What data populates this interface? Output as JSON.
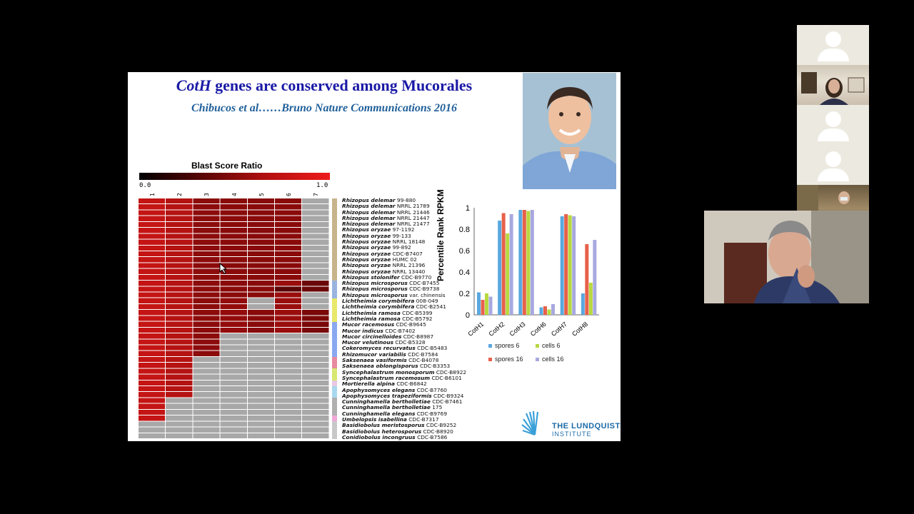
{
  "slide": {
    "title_italic": "CotH",
    "title_rest": " genes are conserved among Mucorales",
    "citation": "Chibucos et al……Bruno Nature Communications 2016"
  },
  "heatmap": {
    "title": "Blast Score Ratio",
    "scale_min": "0.0",
    "scale_max": "1.0",
    "columns": [
      "1",
      "2",
      "3",
      "4",
      "5",
      "6",
      "7"
    ],
    "species": [
      {
        "genus": "Rhizopus delemar",
        "strain": "99-880"
      },
      {
        "genus": "Rhizopus delemar",
        "strain": "NRRL 21789"
      },
      {
        "genus": "Rhizopus delemar",
        "strain": "NRRL 21446"
      },
      {
        "genus": "Rhizopus delemar",
        "strain": "NRRL 21447"
      },
      {
        "genus": "Rhizopus delemar",
        "strain": "NRRL 21477"
      },
      {
        "genus": "Rhizopus oryzae",
        "strain": "97-1192"
      },
      {
        "genus": "Rhizopus oryzae",
        "strain": "99-133"
      },
      {
        "genus": "Rhizopus oryzae",
        "strain": "NRRL 18148"
      },
      {
        "genus": "Rhizopus oryzae",
        "strain": "99-892"
      },
      {
        "genus": "Rhizopus oryzae",
        "strain": "CDC-B7407"
      },
      {
        "genus": "Rhizopus oryzae",
        "strain": "HUMC 02"
      },
      {
        "genus": "Rhizopus oryzae",
        "strain": "NRRL 21396"
      },
      {
        "genus": "Rhizopus oryzae",
        "strain": "NRRL 13440"
      },
      {
        "genus": "Rhizopus stolonifer",
        "strain": "CDC-B9770"
      },
      {
        "genus": "Rhizopus microsporus",
        "strain": "CDC-B7455"
      },
      {
        "genus": "Rhizopus microsporus",
        "strain": "CDC-B9738"
      },
      {
        "genus": "Rhizopus microsporus",
        "strain": "var. chinensis"
      },
      {
        "genus": "Lichtheimia corymbifera",
        "strain": "008-049"
      },
      {
        "genus": "Lichtheimia corymbifera",
        "strain": "CDC-B2541"
      },
      {
        "genus": "Lichtheimia ramosa",
        "strain": "CDC-B5399"
      },
      {
        "genus": "Lichtheimia ramosa",
        "strain": "CDC-B5792"
      },
      {
        "genus": "Mucor racemosus",
        "strain": "CDC-B9645"
      },
      {
        "genus": "Mucor indicus",
        "strain": "CDC-B7402"
      },
      {
        "genus": "Mucor circinelloides",
        "strain": "CDC-B8987"
      },
      {
        "genus": "Mucor velutinous",
        "strain": "CDC-B5328"
      },
      {
        "genus": "Cokeromyces recurvatus",
        "strain": "CDC-B5483"
      },
      {
        "genus": "Rhizomucor variabilis",
        "strain": "CDC-B7584"
      },
      {
        "genus": "Saksenaea vasiformis",
        "strain": "CDC-B4078"
      },
      {
        "genus": "Saksenaea oblongisporus",
        "strain": "CDC-B3353"
      },
      {
        "genus": "Syncephalastrum monosporum",
        "strain": "CDC-B8922"
      },
      {
        "genus": "Syncephalastrum racemosum",
        "strain": "CDC-B6101"
      },
      {
        "genus": "Mortierella alpina",
        "strain": "CDC-B6842"
      },
      {
        "genus": "Apophysomyces elegans",
        "strain": "CDC-B7760"
      },
      {
        "genus": "Apophysomyces trapeziformis",
        "strain": "CDC-B9324"
      },
      {
        "genus": "Cunninghamella bertholletiae",
        "strain": "CDC-B7461"
      },
      {
        "genus": "Cunninghamella bertholletiae",
        "strain": "175"
      },
      {
        "genus": "Cunninghamella elegans",
        "strain": "CDC-B9769"
      },
      {
        "genus": "Umbelopsis isabellina",
        "strain": "CDC-B7317"
      },
      {
        "genus": "Basidiobolus meristosporus",
        "strain": "CDC-B9252"
      },
      {
        "genus": "Basidiobolus heterosporus",
        "strain": "CDC-B8920"
      },
      {
        "genus": "Conidiobolus incongruus",
        "strain": "CDC-B7586"
      }
    ],
    "group_colors": [
      "#c8b48a",
      "#c8b48a",
      "#c8b48a",
      "#c8b48a",
      "#c8b48a",
      "#c8b48a",
      "#c8b48a",
      "#c8b48a",
      "#c8b48a",
      "#c8b48a",
      "#c8b48a",
      "#c8b48a",
      "#c8b48a",
      "#c8b48a",
      "#9ab4e0",
      "#9ab4e0",
      "#9ab4e0",
      "#e8e86a",
      "#e8e86a",
      "#e8e86a",
      "#e8e86a",
      "#8aa8f0",
      "#8aa8f0",
      "#8aa8f0",
      "#8aa8f0",
      "#8aa8f0",
      "#8aa8f0",
      "#e88aa0",
      "#e88aa0",
      "#d8e870",
      "#d8e870",
      "#e8c8e0",
      "#a8d8f0",
      "#a8d8f0",
      "#b0b0b0",
      "#b0b0b0",
      "#b0b0b0",
      "#f0a8d8",
      "#c8c8c8",
      "#c8c8c8",
      "#c8c8c8"
    ]
  },
  "chart_data": {
    "type": "bar",
    "ylabel": "Percentile Rank RPKM",
    "ylim": [
      0,
      1
    ],
    "yticks": [
      "0",
      "0.2",
      "0.4",
      "0.6",
      "0.8",
      "1"
    ],
    "categories": [
      "CotH1",
      "CotH2",
      "CotH3",
      "CotH6",
      "CotH7",
      "CotH8"
    ],
    "series": [
      {
        "name": "spores 6",
        "color": "#5aa8e0",
        "values": [
          0.21,
          0.88,
          0.98,
          0.07,
          0.92,
          0.2
        ]
      },
      {
        "name": "spores 16",
        "color": "#e8604a",
        "values": [
          0.14,
          0.95,
          0.98,
          0.08,
          0.94,
          0.66
        ]
      },
      {
        "name": "cells 6",
        "color": "#b8d840",
        "values": [
          0.2,
          0.76,
          0.97,
          0.05,
          0.93,
          0.3
        ]
      },
      {
        "name": "cells 16",
        "color": "#a8a8e0",
        "values": [
          0.17,
          0.94,
          0.98,
          0.1,
          0.92,
          0.7
        ]
      }
    ]
  },
  "logo": {
    "line1": "THE LUNDQUIST",
    "line2": "INSTITUTE"
  }
}
